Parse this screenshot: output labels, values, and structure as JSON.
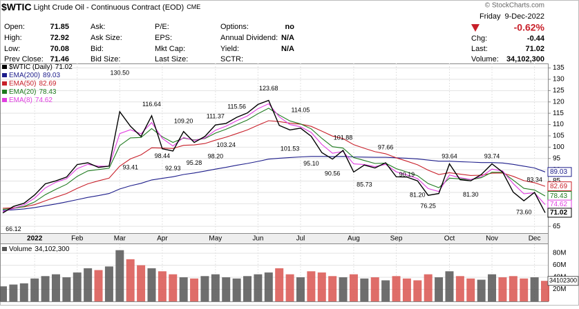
{
  "header": {
    "symbol": "$WTIC",
    "description": "Light Crude Oil - Continuous Contract (EOD)",
    "exchange": "CME",
    "weekday": "Friday",
    "date": "9-Dec-2022",
    "watermark": "© StockCharts.com",
    "change_pct": {
      "value": -0.62,
      "label": "-0.62%"
    },
    "quote": [
      [
        {
          "label": "Open:",
          "value": 71.85
        },
        {
          "label": "High:",
          "value": 72.92
        },
        {
          "label": "Low:",
          "value": 70.08
        },
        {
          "label": "Prev Close:",
          "value": 71.46
        }
      ],
      [
        {
          "label": "Ask:"
        },
        {
          "label": "Ask Size:"
        },
        {
          "label": "Bid:"
        },
        {
          "label": "Bid Size:"
        }
      ],
      [
        {
          "label": "P/E:"
        },
        {
          "label": "EPS:"
        },
        {
          "label": "Mkt Cap:"
        },
        {
          "label": "Last Size:"
        }
      ],
      [
        {
          "label": "Options:",
          "value": "no"
        },
        {
          "label": "Annual Dividend:",
          "value": "N/A"
        },
        {
          "label": "Yield:",
          "value": "N/A"
        },
        {
          "label": "SCTR:"
        }
      ]
    ],
    "stats": [
      {
        "label": "Chg:",
        "value": -0.44
      },
      {
        "label": "Last:",
        "value": 71.02
      },
      {
        "label": "Volume:",
        "value": 34102300,
        "value_label": "34,102,300"
      }
    ]
  },
  "chart_data": [
    {
      "type": "line",
      "grid": true,
      "categories": [
        null,
        null,
        null,
        "2022",
        null,
        null,
        null,
        "Feb",
        null,
        null,
        null,
        "Mar",
        null,
        null,
        null,
        "Apr",
        null,
        null,
        null,
        null,
        "May",
        null,
        null,
        null,
        "Jun",
        null,
        null,
        null,
        "Jul",
        null,
        null,
        null,
        null,
        "Aug",
        null,
        null,
        null,
        "Sep",
        null,
        null,
        null,
        null,
        "Oct",
        null,
        null,
        null,
        "Nov",
        null,
        null,
        null,
        "Dec",
        null
      ],
      "ylim": [
        62,
        137
      ],
      "yticks": [
        65,
        70,
        75,
        80,
        85,
        90,
        95,
        100,
        105,
        110,
        115,
        120,
        125,
        130,
        135
      ],
      "series": [
        {
          "name": "EMA(200)",
          "color": "#1c1c8a",
          "values": [
            72.0,
            72.3,
            72.7,
            73.3,
            74.1,
            74.9,
            75.8,
            76.8,
            77.8,
            78.6,
            79.5,
            81.5,
            82.9,
            84.0,
            85.5,
            86.2,
            86.9,
            87.9,
            88.6,
            89.4,
            90.3,
            91.1,
            92.0,
            92.8,
            93.7,
            94.7,
            95.1,
            95.4,
            95.7,
            95.9,
            95.9,
            95.8,
            95.9,
            95.7,
            95.6,
            95.5,
            95.5,
            95.3,
            95.1,
            94.8,
            94.3,
            93.8,
            93.8,
            93.6,
            93.4,
            93.2,
            93.2,
            93.0,
            92.4,
            91.6,
            90.8,
            89.03
          ]
        },
        {
          "name": "EMA(50)",
          "color": "#c8202a",
          "values": [
            73.0,
            73.2,
            73.6,
            74.6,
            76.3,
            77.9,
            79.5,
            81.8,
            83.8,
            85.1,
            86.3,
            91.6,
            94.8,
            96.6,
            99.7,
            99.6,
            99.4,
            100.8,
            101.0,
            101.6,
            103.1,
            104.4,
            106.0,
            107.6,
            109.7,
            111.7,
            111.3,
            110.6,
            110.2,
            109.2,
            107.1,
            104.9,
            103.8,
            101.1,
            99.5,
            98.0,
            97.1,
            95.3,
            93.8,
            92.2,
            89.8,
            87.9,
            88.7,
            88.1,
            87.5,
            87.6,
            88.5,
            88.6,
            87.1,
            85.2,
            84.3,
            82.69
          ]
        },
        {
          "name": "EMA(20)",
          "color": "#1e7a1e",
          "values": [
            72.5,
            72.9,
            73.8,
            75.8,
            79.0,
            81.4,
            83.6,
            87.1,
            89.5,
            90.1,
            90.7,
            100.7,
            104.1,
            104.3,
            108.2,
            104.6,
            102.1,
            104.0,
            103.2,
            103.8,
            106.2,
            107.9,
            110.0,
            112.0,
            114.8,
            117.2,
            114.2,
            111.6,
            110.3,
            108.1,
            103.9,
            100.2,
            99.6,
            95.4,
            94.1,
            92.8,
            92.9,
            90.5,
            89.0,
            87.4,
            83.9,
            82.1,
            86.3,
            86.0,
            85.6,
            86.5,
            88.9,
            88.9,
            85.4,
            81.8,
            81.1,
            78.43
          ]
        },
        {
          "name": "EMA(8)",
          "color": "#e03ce0",
          "values": [
            71.5,
            72.9,
            74.5,
            77.5,
            82.0,
            84.5,
            86.1,
            90.5,
            92.4,
            91.6,
            91.6,
            106.0,
            107.7,
            105.9,
            110.9,
            103.9,
            100.5,
            104.3,
            103.0,
            104.0,
            107.5,
            109.3,
            111.7,
            113.8,
            117.0,
            119.2,
            113.4,
            110.0,
            109.0,
            106.5,
            101.2,
            97.3,
            98.1,
            92.6,
            92.3,
            91.4,
            92.4,
            89.1,
            87.7,
            86.1,
            81.7,
            80.4,
            87.7,
            86.5,
            85.7,
            87.0,
            90.3,
            89.5,
            83.9,
            79.4,
            79.8,
            74.62
          ]
        },
        {
          "name": "$WTIC (Daily)",
          "color": "#000000",
          "values": [
            70.9,
            73.8,
            75.2,
            78.9,
            83.8,
            85.1,
            86.8,
            92.3,
            93.1,
            91.1,
            91.6,
            115.7,
            109.3,
            104.7,
            113.9,
            99.3,
            98.3,
            106.9,
            102.1,
            104.7,
            109.8,
            110.5,
            113.2,
            115.1,
            118.9,
            120.7,
            109.6,
            107.6,
            108.4,
            104.8,
            97.6,
            94.7,
            98.6,
            89.0,
            92.1,
            90.8,
            93.1,
            86.9,
            86.8,
            85.1,
            78.7,
            79.5,
            92.6,
            85.6,
            85.1,
            87.9,
            92.6,
            89.0,
            80.1,
            76.3,
            80.0,
            71.02
          ]
        }
      ],
      "high_labels": [
        null,
        null,
        null,
        null,
        null,
        null,
        null,
        null,
        null,
        null,
        null,
        {
          "value": 130.5,
          "label": "130.50"
        },
        null,
        null,
        {
          "value": 116.64,
          "label": "116.64"
        },
        null,
        null,
        {
          "value": 109.2,
          "label": "109.20"
        },
        null,
        null,
        {
          "value": 111.37,
          "label": "111.37"
        },
        null,
        {
          "value": 115.56,
          "label": "115.56"
        },
        null,
        null,
        {
          "value": 123.68,
          "label": "123.68"
        },
        null,
        null,
        {
          "value": 114.05,
          "label": "114.05"
        },
        null,
        null,
        null,
        {
          "value": 101.88,
          "label": "101.88"
        },
        null,
        null,
        null,
        {
          "value": 97.66,
          "label": "97.66"
        },
        null,
        null,
        null,
        null,
        null,
        {
          "value": 93.64,
          "label": "93.64"
        },
        null,
        null,
        null,
        {
          "value": 93.74,
          "label": "93.74"
        },
        null,
        null,
        null,
        {
          "value": 83.34,
          "label": "83.34"
        },
        null
      ],
      "low_labels": [
        null,
        {
          "value": 66.12,
          "label": "66.12"
        },
        null,
        null,
        null,
        null,
        null,
        null,
        null,
        null,
        null,
        null,
        {
          "value": 93.41,
          "label": "93.41"
        },
        null,
        null,
        {
          "value": 98.44,
          "label": "98.44"
        },
        {
          "value": 92.93,
          "label": "92.93"
        },
        null,
        {
          "value": 95.28,
          "label": "95.28"
        },
        null,
        {
          "value": 98.2,
          "label": "98.20"
        },
        {
          "value": 103.24,
          "label": "103.24"
        },
        null,
        null,
        null,
        null,
        null,
        {
          "value": 101.53,
          "label": "101.53"
        },
        null,
        {
          "value": 95.1,
          "label": "95.10"
        },
        null,
        {
          "value": 90.56,
          "label": "90.56"
        },
        null,
        null,
        {
          "value": 85.73,
          "label": "85.73"
        },
        null,
        null,
        null,
        {
          "value": 90.19,
          "label": "90.19"
        },
        {
          "value": 81.2,
          "label": "81.20"
        },
        {
          "value": 76.25,
          "label": "76.25"
        },
        null,
        null,
        null,
        {
          "value": 81.3,
          "label": "81.30"
        },
        null,
        null,
        null,
        null,
        {
          "value": 73.6,
          "label": "73.60"
        },
        null,
        null
      ]
    },
    {
      "type": "bar",
      "title": "Volume",
      "color": "#555555",
      "down_color": "#d9534f",
      "ylim": [
        0,
        95000000
      ],
      "yticks": [
        {
          "value": 20000000,
          "label": "20M"
        },
        {
          "value": 40000000,
          "label": "40M"
        },
        {
          "value": 60000000,
          "label": "60M"
        },
        {
          "value": 80000000,
          "label": "80M"
        }
      ],
      "values": [
        25000000,
        28000000,
        30000000,
        38000000,
        42000000,
        45000000,
        40000000,
        48000000,
        55000000,
        52000000,
        58000000,
        85000000,
        70000000,
        60000000,
        55000000,
        50000000,
        45000000,
        40000000,
        38000000,
        42000000,
        45000000,
        40000000,
        38000000,
        42000000,
        45000000,
        48000000,
        55000000,
        45000000,
        40000000,
        50000000,
        48000000,
        42000000,
        40000000,
        45000000,
        38000000,
        40000000,
        35000000,
        42000000,
        38000000,
        35000000,
        45000000,
        40000000,
        50000000,
        42000000,
        38000000,
        36000000,
        45000000,
        40000000,
        42000000,
        38000000,
        40000000,
        34102300
      ]
    }
  ]
}
